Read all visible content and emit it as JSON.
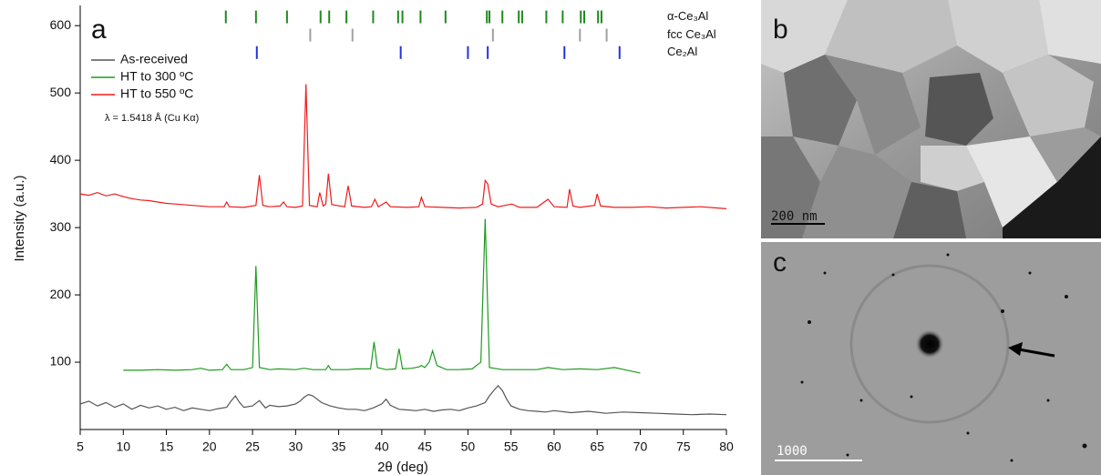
{
  "chart_data": {
    "type": "line",
    "panel_label": "a",
    "xlabel": "2θ (deg)",
    "ylabel": "Intensity (a.u.)",
    "annotation": "λ = 1.5418 Å (Cu Kα)",
    "xlim": [
      5,
      80
    ],
    "ylim": [
      0,
      630
    ],
    "xticks": [
      5,
      10,
      15,
      20,
      25,
      30,
      35,
      40,
      45,
      50,
      55,
      60,
      65,
      70,
      75,
      80
    ],
    "yticks": [
      100,
      200,
      300,
      400,
      500,
      600
    ],
    "legend": "top-left",
    "series": [
      {
        "name": "As-received",
        "color": "#555555",
        "x": [
          5,
          6,
          7,
          8,
          9,
          10,
          11,
          12,
          13,
          14,
          15,
          16,
          17,
          18,
          19,
          20,
          21,
          22,
          22.5,
          23,
          23.5,
          24,
          25,
          25.8,
          26.5,
          27,
          28,
          29,
          30,
          30.5,
          31,
          31.5,
          32,
          32.5,
          33,
          34,
          35,
          36,
          37,
          38,
          39,
          40,
          40.5,
          41,
          42,
          43,
          44,
          45,
          46,
          47,
          48,
          49,
          50,
          51,
          52,
          52.5,
          53,
          53.5,
          54,
          54.5,
          55,
          56,
          57,
          58,
          59,
          60,
          62,
          64,
          66,
          68,
          70,
          72,
          74,
          76,
          78,
          80
        ],
        "values": [
          38,
          42,
          35,
          40,
          33,
          38,
          30,
          36,
          32,
          35,
          30,
          33,
          28,
          32,
          30,
          28,
          31,
          33,
          42,
          50,
          40,
          33,
          35,
          43,
          32,
          36,
          34,
          35,
          38,
          42,
          48,
          52,
          50,
          45,
          40,
          35,
          32,
          30,
          30,
          28,
          32,
          38,
          45,
          36,
          30,
          29,
          28,
          30,
          27,
          29,
          30,
          28,
          32,
          35,
          40,
          50,
          58,
          65,
          58,
          45,
          35,
          30,
          28,
          27,
          26,
          28,
          25,
          27,
          24,
          26,
          25,
          24,
          23,
          22,
          23,
          22
        ]
      },
      {
        "name": "HT to 300 ºC",
        "color": "#1f9a1f",
        "x": [
          10,
          12,
          14,
          16,
          18,
          19,
          20,
          21.5,
          22,
          22.5,
          24,
          25,
          25.4,
          25.8,
          27,
          28,
          30,
          31,
          32,
          33.5,
          33.8,
          34.1,
          36,
          37,
          38.7,
          39.1,
          39.5,
          40.5,
          41.6,
          42,
          42.4,
          43.5,
          44.3,
          44.6,
          45,
          45.5,
          45.9,
          46.4,
          47.5,
          49,
          50.5,
          51.5,
          52,
          52.5,
          54,
          56,
          58,
          59.3,
          61,
          63,
          65,
          67,
          68.5,
          70
        ],
        "values": [
          88,
          88,
          89,
          88,
          89,
          91,
          88,
          89,
          97,
          89,
          89,
          92,
          243,
          92,
          89,
          90,
          89,
          91,
          89,
          89,
          95,
          89,
          89,
          90,
          90,
          130,
          92,
          89,
          90,
          120,
          90,
          91,
          93,
          95,
          92,
          100,
          117,
          95,
          89,
          89,
          90,
          100,
          313,
          92,
          89,
          89,
          89,
          92,
          89,
          90,
          89,
          92,
          88,
          84
        ]
      },
      {
        "name": "HT to 550 ºC",
        "color": "#ee1c1c",
        "x": [
          5,
          6,
          7,
          8,
          9,
          10,
          11,
          12,
          13,
          14,
          15,
          16,
          18,
          20,
          21.7,
          22,
          22.3,
          24,
          25.4,
          25.8,
          26.2,
          27,
          28.2,
          28.6,
          29,
          30,
          30.8,
          31.2,
          31.6,
          32.5,
          32.8,
          33.2,
          33.5,
          33.8,
          34.2,
          35.7,
          36.1,
          36.5,
          38,
          38.8,
          39.2,
          39.6,
          40.5,
          41,
          43,
          44.3,
          44.6,
          45,
          47,
          49,
          51,
          51.7,
          52,
          52.3,
          52.7,
          53.5,
          55.1,
          56,
          58,
          59.3,
          60,
          61.5,
          61.8,
          62.2,
          63,
          64.7,
          65,
          65.4,
          67,
          69,
          71,
          73,
          75,
          77,
          79,
          80
        ],
        "values": [
          350,
          348,
          352,
          347,
          350,
          346,
          343,
          341,
          340,
          338,
          336,
          335,
          333,
          331,
          331,
          338,
          331,
          330,
          333,
          378,
          333,
          331,
          332,
          338,
          331,
          330,
          332,
          513,
          333,
          331,
          352,
          332,
          335,
          380,
          334,
          331,
          362,
          332,
          330,
          331,
          342,
          331,
          338,
          331,
          330,
          331,
          345,
          331,
          330,
          329,
          330,
          335,
          370,
          365,
          335,
          331,
          335,
          330,
          330,
          342,
          331,
          330,
          357,
          332,
          330,
          333,
          350,
          332,
          330,
          330,
          331,
          329,
          330,
          331,
          329,
          328
        ]
      }
    ],
    "reference_markers": [
      {
        "name": "α-Ce₃Al",
        "color": "#1f8a1f",
        "level": 613,
        "positions": [
          21.9,
          25.4,
          29.0,
          32.9,
          33.9,
          35.9,
          39.0,
          41.9,
          42.4,
          44.5,
          47.4,
          52.2,
          52.5,
          54.0,
          55.9,
          56.3,
          59.1,
          61.0,
          63.1,
          63.5,
          65.1,
          65.5
        ]
      },
      {
        "name": "fcc Ce₃Al",
        "color": "#a0a0a0",
        "level": 586,
        "positions": [
          31.7,
          36.6,
          52.9,
          63.0,
          66.1
        ]
      },
      {
        "name": "Ce₂Al",
        "color": "#2233dd",
        "level": 560,
        "positions": [
          25.5,
          42.2,
          50.0,
          52.3,
          61.2,
          67.6
        ]
      }
    ]
  },
  "panels": {
    "b": {
      "label": "b",
      "scale_bar": "200 nm"
    },
    "c": {
      "label": "c",
      "scale_bar": "1000"
    }
  }
}
